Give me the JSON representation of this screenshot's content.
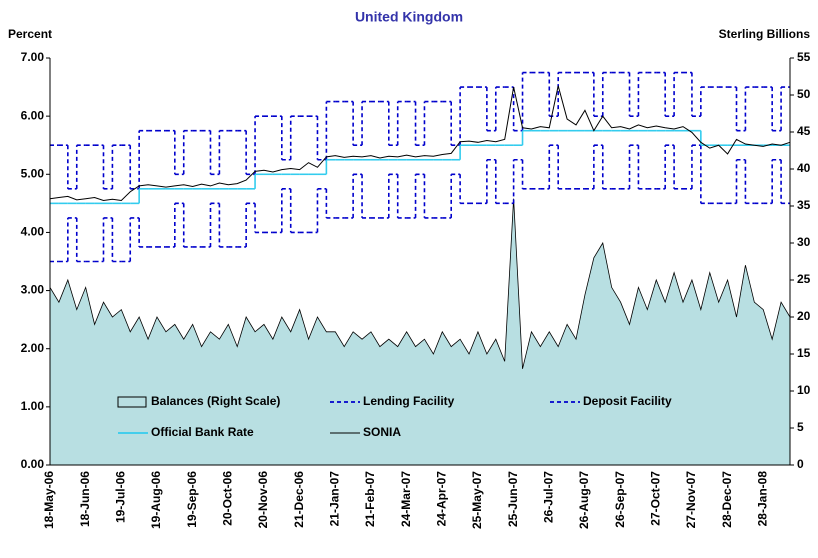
{
  "chart_data": {
    "type": "line",
    "title": "United Kingdom",
    "y_label": "Percent",
    "y2_label": "Sterling Billions",
    "categories": [
      "18-May-06",
      null,
      null,
      null,
      "18-Jun-06",
      null,
      null,
      null,
      "19-Jul-06",
      null,
      null,
      null,
      "19-Aug-06",
      null,
      null,
      null,
      "19-Sep-06",
      null,
      null,
      null,
      "20-Oct-06",
      null,
      null,
      null,
      "20-Nov-06",
      null,
      null,
      null,
      "21-Dec-06",
      null,
      null,
      null,
      "21-Jan-07",
      null,
      null,
      null,
      "21-Feb-07",
      null,
      null,
      null,
      "24-Mar-07",
      null,
      null,
      null,
      "24-Apr-07",
      null,
      null,
      null,
      "25-May-07",
      null,
      null,
      null,
      "25-Jun-07",
      null,
      null,
      null,
      "26-Jul-07",
      null,
      null,
      null,
      "26-Aug-07",
      null,
      null,
      null,
      "26-Sep-07",
      null,
      null,
      null,
      "27-Oct-07",
      null,
      null,
      null,
      "27-Nov-07",
      null,
      null,
      null,
      "28-Dec-07",
      null,
      null,
      null,
      "28-Jan-08",
      null,
      null,
      null
    ],
    "ylim": [
      0,
      7
    ],
    "yticks": [
      {
        "value": 0,
        "label": "0.00"
      },
      {
        "value": 1,
        "label": "1.00"
      },
      {
        "value": 2,
        "label": "2.00"
      },
      {
        "value": 3,
        "label": "3.00"
      },
      {
        "value": 4,
        "label": "4.00"
      },
      {
        "value": 5,
        "label": "5.00"
      },
      {
        "value": 6,
        "label": "6.00"
      },
      {
        "value": 7,
        "label": "7.00"
      }
    ],
    "y2lim": [
      0,
      55
    ],
    "y2ticks": [
      0,
      5,
      10,
      15,
      20,
      25,
      30,
      35,
      40,
      45,
      50,
      55
    ],
    "legend": "inside-bottom",
    "series": [
      {
        "name": "Balances (Right Scale)",
        "type": "area",
        "axis": "y2",
        "color": "#b8dfe2",
        "values": [
          24,
          22,
          25,
          21,
          24,
          19,
          22,
          20,
          21,
          18,
          20,
          17,
          20,
          18,
          19,
          17,
          19,
          16,
          18,
          17,
          19,
          16,
          20,
          18,
          19,
          17,
          20,
          18,
          21,
          17,
          20,
          18,
          18,
          16,
          18,
          17,
          18,
          16,
          17,
          16,
          18,
          16,
          17,
          15,
          18,
          16,
          17,
          15,
          18,
          15,
          17,
          14,
          36,
          13,
          18,
          16,
          18,
          16,
          19,
          17,
          23,
          28,
          30,
          24,
          22,
          19,
          24,
          21,
          25,
          22,
          26,
          22,
          25,
          21,
          26,
          22,
          25,
          20,
          27,
          22,
          21,
          17,
          22,
          20
        ]
      },
      {
        "name": "Lending Facility",
        "type": "step",
        "dash": true,
        "color": "#0000cc",
        "values": [
          5.5,
          5.5,
          4.75,
          5.5,
          5.5,
          5.5,
          4.75,
          5.5,
          5.5,
          4.75,
          5.75,
          5.75,
          5.75,
          5.75,
          5.0,
          5.75,
          5.75,
          5.75,
          5.0,
          5.75,
          5.75,
          5.75,
          5.0,
          6,
          6,
          6,
          5.25,
          6,
          6,
          6,
          5.25,
          6.25,
          6.25,
          6.25,
          5.5,
          6.25,
          6.25,
          6.25,
          5.5,
          6.25,
          6.25,
          5.5,
          6.25,
          6.25,
          6.25,
          5.5,
          6.5,
          6.5,
          6.5,
          5.75,
          6.5,
          6.5,
          5.75,
          6.75,
          6.75,
          6.75,
          6.0,
          6.75,
          6.75,
          6.75,
          6.75,
          6.0,
          6.75,
          6.75,
          6.75,
          6.0,
          6.75,
          6.75,
          6.75,
          6.0,
          6.75,
          6.75,
          6.0,
          6.5,
          6.5,
          6.5,
          6.5,
          5.75,
          6.5,
          6.5,
          6.5,
          5.75,
          6.5,
          6.5
        ]
      },
      {
        "name": "Deposit Facility",
        "type": "step",
        "dash": true,
        "color": "#0000cc",
        "values": [
          3.5,
          3.5,
          4.25,
          3.5,
          3.5,
          3.5,
          4.25,
          3.5,
          3.5,
          4.25,
          3.75,
          3.75,
          3.75,
          3.75,
          4.5,
          3.75,
          3.75,
          3.75,
          4.5,
          3.75,
          3.75,
          3.75,
          4.5,
          4,
          4,
          4,
          4.75,
          4,
          4,
          4,
          4.75,
          4.25,
          4.25,
          4.25,
          5.0,
          4.25,
          4.25,
          4.25,
          5.0,
          4.25,
          4.25,
          5.0,
          4.25,
          4.25,
          4.25,
          5.0,
          4.5,
          4.5,
          4.5,
          5.25,
          4.5,
          4.5,
          5.25,
          4.75,
          4.75,
          4.75,
          5.5,
          4.75,
          4.75,
          4.75,
          4.75,
          5.5,
          4.75,
          4.75,
          4.75,
          5.5,
          4.75,
          4.75,
          4.75,
          5.5,
          4.75,
          4.75,
          5.5,
          4.5,
          4.5,
          4.5,
          4.5,
          5.25,
          4.5,
          4.5,
          4.5,
          5.25,
          4.5,
          4.5
        ]
      },
      {
        "name": "Official Bank Rate",
        "type": "step",
        "dash": false,
        "color": "#33ccee",
        "values": [
          4.5,
          4.5,
          4.5,
          4.5,
          4.5,
          4.5,
          4.5,
          4.5,
          4.5,
          4.5,
          4.75,
          4.75,
          4.75,
          4.75,
          4.75,
          4.75,
          4.75,
          4.75,
          4.75,
          4.75,
          4.75,
          4.75,
          4.75,
          5,
          5,
          5,
          5,
          5,
          5,
          5,
          5,
          5.25,
          5.25,
          5.25,
          5.25,
          5.25,
          5.25,
          5.25,
          5.25,
          5.25,
          5.25,
          5.25,
          5.25,
          5.25,
          5.25,
          5.25,
          5.5,
          5.5,
          5.5,
          5.5,
          5.5,
          5.5,
          5.5,
          5.75,
          5.75,
          5.75,
          5.75,
          5.75,
          5.75,
          5.75,
          5.75,
          5.75,
          5.75,
          5.75,
          5.75,
          5.75,
          5.75,
          5.75,
          5.75,
          5.75,
          5.75,
          5.75,
          5.75,
          5.5,
          5.5,
          5.5,
          5.5,
          5.5,
          5.5,
          5.5,
          5.5,
          5.5,
          5.5,
          5.5
        ]
      },
      {
        "name": "SONIA",
        "type": "line",
        "dash": false,
        "color": "#000000",
        "values": [
          4.58,
          4.6,
          4.62,
          4.56,
          4.58,
          4.6,
          4.55,
          4.57,
          4.55,
          4.7,
          4.8,
          4.82,
          4.8,
          4.78,
          4.8,
          4.82,
          4.79,
          4.83,
          4.8,
          4.85,
          4.82,
          4.84,
          4.9,
          5.05,
          5.07,
          5.04,
          5.08,
          5.1,
          5.08,
          5.2,
          5.12,
          5.3,
          5.32,
          5.29,
          5.31,
          5.3,
          5.32,
          5.28,
          5.31,
          5.3,
          5.33,
          5.3,
          5.32,
          5.31,
          5.34,
          5.36,
          5.56,
          5.57,
          5.55,
          5.58,
          5.56,
          5.6,
          6.5,
          5.8,
          5.78,
          5.82,
          5.8,
          6.52,
          5.95,
          5.85,
          6.1,
          5.75,
          6.0,
          5.8,
          5.82,
          5.78,
          5.85,
          5.8,
          5.83,
          5.8,
          5.78,
          5.82,
          5.72,
          5.55,
          5.45,
          5.5,
          5.35,
          5.6,
          5.52,
          5.5,
          5.48,
          5.52,
          5.5,
          5.55
        ]
      }
    ]
  }
}
